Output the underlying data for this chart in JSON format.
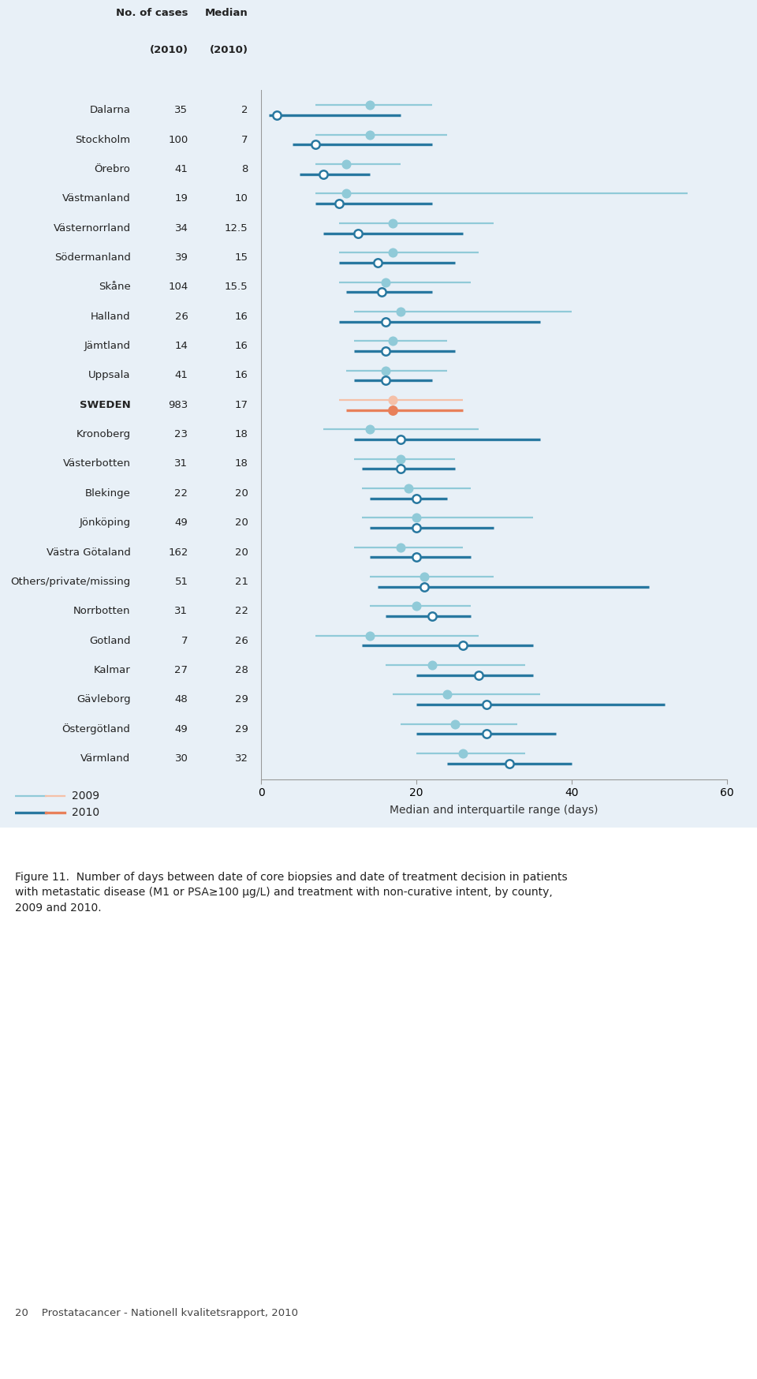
{
  "regions": [
    "Dalarna",
    "Stockholm",
    "Örebro",
    "Västmanland",
    "Västernorrland",
    "Södermanland",
    "Skåne",
    "Halland",
    "Jämtland",
    "Uppsala",
    "SWEDEN",
    "Kronoberg",
    "Västerbotten",
    "Blekinge",
    "Jönköping",
    "Västra Götaland",
    "Others/private/missing",
    "Norrbotten",
    "Gotland",
    "Kalmar",
    "Gävleborg",
    "Östergötland",
    "Värmland"
  ],
  "cases_2010": [
    35,
    100,
    41,
    19,
    34,
    39,
    104,
    26,
    14,
    41,
    983,
    23,
    31,
    22,
    49,
    162,
    51,
    31,
    7,
    27,
    48,
    49,
    30
  ],
  "median_2010": [
    "2",
    "7",
    "8",
    "10",
    "12.5",
    "15",
    "15.5",
    "16",
    "16",
    "16",
    "17",
    "18",
    "18",
    "20",
    "20",
    "20",
    "21",
    "22",
    "26",
    "28",
    "29",
    "29",
    "32"
  ],
  "data_2009": [
    {
      "median": 14,
      "q1": 7,
      "q3": 22
    },
    {
      "median": 14,
      "q1": 7,
      "q3": 24
    },
    {
      "median": 11,
      "q1": 7,
      "q3": 18
    },
    {
      "median": 11,
      "q1": 7,
      "q3": 55
    },
    {
      "median": 17,
      "q1": 10,
      "q3": 30
    },
    {
      "median": 17,
      "q1": 10,
      "q3": 28
    },
    {
      "median": 16,
      "q1": 10,
      "q3": 27
    },
    {
      "median": 18,
      "q1": 12,
      "q3": 40
    },
    {
      "median": 17,
      "q1": 12,
      "q3": 24
    },
    {
      "median": 16,
      "q1": 11,
      "q3": 24
    },
    {
      "median": 17,
      "q1": 10,
      "q3": 26
    },
    {
      "median": 14,
      "q1": 8,
      "q3": 28
    },
    {
      "median": 18,
      "q1": 12,
      "q3": 25
    },
    {
      "median": 19,
      "q1": 13,
      "q3": 27
    },
    {
      "median": 20,
      "q1": 13,
      "q3": 35
    },
    {
      "median": 18,
      "q1": 12,
      "q3": 26
    },
    {
      "median": 21,
      "q1": 14,
      "q3": 30
    },
    {
      "median": 20,
      "q1": 14,
      "q3": 27
    },
    {
      "median": 14,
      "q1": 7,
      "q3": 28
    },
    {
      "median": 22,
      "q1": 16,
      "q3": 34
    },
    {
      "median": 24,
      "q1": 17,
      "q3": 36
    },
    {
      "median": 25,
      "q1": 18,
      "q3": 33
    },
    {
      "median": 26,
      "q1": 20,
      "q3": 34
    }
  ],
  "data_2010": [
    {
      "median": 2,
      "q1": 1,
      "q3": 18
    },
    {
      "median": 7,
      "q1": 4,
      "q3": 22
    },
    {
      "median": 8,
      "q1": 5,
      "q3": 14
    },
    {
      "median": 10,
      "q1": 7,
      "q3": 22
    },
    {
      "median": 12.5,
      "q1": 8,
      "q3": 26
    },
    {
      "median": 15,
      "q1": 10,
      "q3": 25
    },
    {
      "median": 15.5,
      "q1": 11,
      "q3": 22
    },
    {
      "median": 16,
      "q1": 10,
      "q3": 36
    },
    {
      "median": 16,
      "q1": 12,
      "q3": 25
    },
    {
      "median": 16,
      "q1": 12,
      "q3": 22
    },
    {
      "median": 17,
      "q1": 11,
      "q3": 26
    },
    {
      "median": 18,
      "q1": 12,
      "q3": 36
    },
    {
      "median": 18,
      "q1": 13,
      "q3": 25
    },
    {
      "median": 20,
      "q1": 14,
      "q3": 24
    },
    {
      "median": 20,
      "q1": 14,
      "q3": 30
    },
    {
      "median": 20,
      "q1": 14,
      "q3": 27
    },
    {
      "median": 21,
      "q1": 15,
      "q3": 50
    },
    {
      "median": 22,
      "q1": 16,
      "q3": 27
    },
    {
      "median": 26,
      "q1": 13,
      "q3": 35
    },
    {
      "median": 28,
      "q1": 20,
      "q3": 35
    },
    {
      "median": 29,
      "q1": 20,
      "q3": 52
    },
    {
      "median": 29,
      "q1": 20,
      "q3": 38
    },
    {
      "median": 32,
      "q1": 24,
      "q3": 40
    }
  ],
  "color_2009_line": "#90cad8",
  "color_2010_line": "#2878a0",
  "color_sweden_2009_line": "#f5c0a8",
  "color_sweden_2010_line": "#e8805a",
  "bg_blue": "#e8f0f7",
  "bg_white": "#ffffff",
  "xlim": [
    0,
    60
  ],
  "xticks": [
    0,
    20,
    40,
    60
  ],
  "xlabel": "Median and interquartile range (days)",
  "footer_text": "20    Prostatacancer - Nationell kvalitetsrapport, 2010"
}
